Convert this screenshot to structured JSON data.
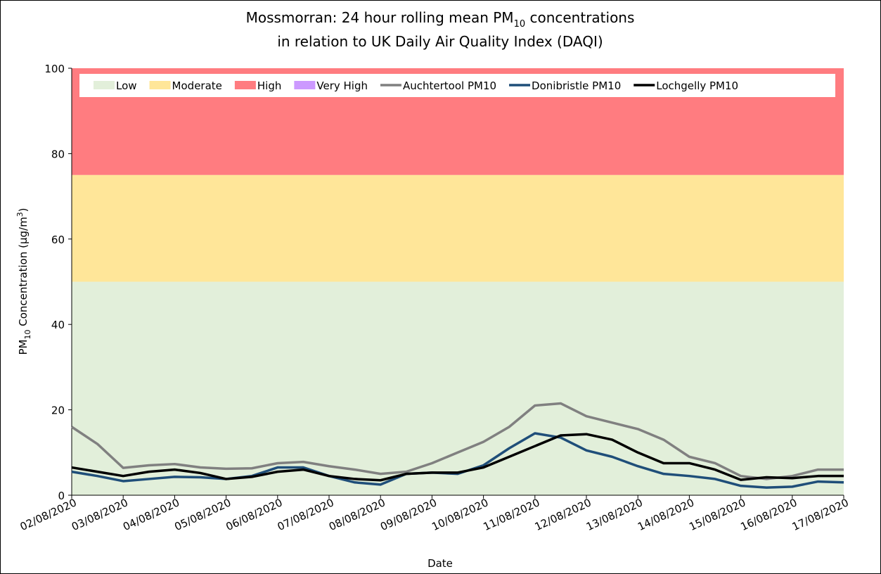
{
  "chart_data": {
    "type": "line",
    "title": {
      "line1": [
        "Mossmorran: 24 hour rolling mean PM",
        "10",
        " concentrations"
      ],
      "line2": "in relation to UK Daily Air Quality Index (DAQI)"
    },
    "y_label": [
      "PM",
      "10",
      " Concentration (µg/m",
      "3",
      ")"
    ],
    "x_label": "Date",
    "xlim": [
      0,
      15
    ],
    "xticks": [
      {
        "value": 0,
        "label": "02/08/2020"
      },
      {
        "value": 1,
        "label": "03/08/2020"
      },
      {
        "value": 2,
        "label": "04/08/2020"
      },
      {
        "value": 3,
        "label": "05/08/2020"
      },
      {
        "value": 4,
        "label": "06/08/2020"
      },
      {
        "value": 5,
        "label": "07/08/2020"
      },
      {
        "value": 6,
        "label": "08/08/2020"
      },
      {
        "value": 7,
        "label": "09/08/2020"
      },
      {
        "value": 8,
        "label": "10/08/2020"
      },
      {
        "value": 9,
        "label": "11/08/2020"
      },
      {
        "value": 10,
        "label": "12/08/2020"
      },
      {
        "value": 11,
        "label": "13/08/2020"
      },
      {
        "value": 12,
        "label": "14/08/2020"
      },
      {
        "value": 13,
        "label": "15/08/2020"
      },
      {
        "value": 14,
        "label": "16/08/2020"
      },
      {
        "value": 15,
        "label": "17/08/2020"
      }
    ],
    "ylim": [
      0,
      100
    ],
    "yticks": [
      0,
      20,
      40,
      60,
      80,
      100
    ],
    "bands": [
      {
        "name": "Low",
        "color": "#e2efda",
        "range": [
          0,
          50
        ]
      },
      {
        "name": "Moderate",
        "color": "#ffe699",
        "range": [
          50,
          75
        ]
      },
      {
        "name": "High",
        "color": "#ff7c80",
        "range": [
          75,
          100
        ]
      },
      {
        "name": "Very High",
        "color": "#cc99ff"
      }
    ],
    "x": [
      0,
      0.5,
      1,
      1.5,
      2,
      2.5,
      3,
      3.5,
      4,
      4.5,
      5,
      5.5,
      6,
      6.5,
      7,
      7.5,
      8,
      8.5,
      9,
      9.5,
      10,
      10.5,
      11,
      11.5,
      12,
      12.5,
      13,
      13.5,
      14,
      14.5,
      15
    ],
    "series": [
      {
        "name": "Auchtertool PM10",
        "color": "#808080",
        "values": [
          16,
          12,
          6.4,
          7,
          7.3,
          6.5,
          6.2,
          6.3,
          7.5,
          7.8,
          6.8,
          6,
          5,
          5.5,
          7.5,
          10,
          12.5,
          16,
          21,
          21.5,
          18.5,
          17,
          15.5,
          13,
          9,
          7.5,
          4.5,
          3.8,
          4.5,
          6,
          6
        ]
      },
      {
        "name": "Donibristle PM10",
        "color": "#1f4e79",
        "values": [
          5.5,
          4.5,
          3.3,
          3.8,
          4.3,
          4.2,
          3.8,
          4.5,
          6.5,
          6.5,
          4.5,
          3,
          2.5,
          5,
          5.3,
          5,
          7,
          11,
          14.5,
          13.5,
          10.5,
          9,
          6.8,
          5,
          4.5,
          3.8,
          2.2,
          1.8,
          2,
          3.2,
          3
        ]
      },
      {
        "name": "Lochgelly PM10",
        "color": "#000000",
        "values": [
          6.5,
          5.5,
          4.5,
          5.5,
          6,
          5.2,
          3.8,
          4.3,
          5.5,
          6,
          4.5,
          3.8,
          3.5,
          5,
          5.3,
          5.3,
          6.5,
          9,
          11.5,
          14,
          14.3,
          13,
          10,
          7.5,
          7.5,
          6,
          3.6,
          4.2,
          4,
          4.5,
          4.5
        ]
      }
    ]
  }
}
